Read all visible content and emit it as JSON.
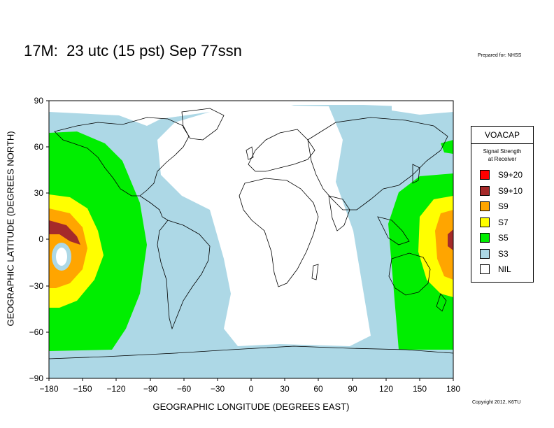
{
  "title": "17M:  23 utc (15 pst) Sep 77ssn",
  "prepared_for": "Prepared for: NHSS",
  "copyright": "Copyright 2012, K6TU",
  "x_axis": {
    "label": "GEOGRAPHIC LONGITUDE (DEGREES EAST)",
    "ticks": [
      "−180",
      "−150",
      "−120",
      "−90",
      "−60",
      "−30",
      "0",
      "30",
      "60",
      "90",
      "120",
      "150",
      "180"
    ],
    "range": [
      -180,
      180
    ]
  },
  "y_axis": {
    "label": "GEOGRAPHIC LATITUDE (DEGREES NORTH)",
    "ticks": [
      "90",
      "60",
      "30",
      "0",
      "−30",
      "−60",
      "−90"
    ],
    "range": [
      -90,
      90
    ]
  },
  "legend": {
    "title": "VOACAP",
    "subtitle_line1": "Signal Strength",
    "subtitle_line2": "at Receiver",
    "items": [
      {
        "label": "S9+20",
        "color": "#ff0000"
      },
      {
        "label": "S9+10",
        "color": "#a52a2a"
      },
      {
        "label": "S9",
        "color": "#ffa500"
      },
      {
        "label": "S7",
        "color": "#ffff00"
      },
      {
        "label": "S5",
        "color": "#00ee00"
      },
      {
        "label": "S3",
        "color": "#add8e6"
      },
      {
        "label": "NIL",
        "color": "#ffffff"
      }
    ]
  },
  "colors": {
    "S3": "#add8e6",
    "S5": "#00ee00",
    "S7": "#ffff00",
    "S9": "#ffa500",
    "S9+10": "#a52a2a",
    "S9+20": "#ff0000",
    "NIL": "#ffffff",
    "land_outline": "#000000"
  }
}
